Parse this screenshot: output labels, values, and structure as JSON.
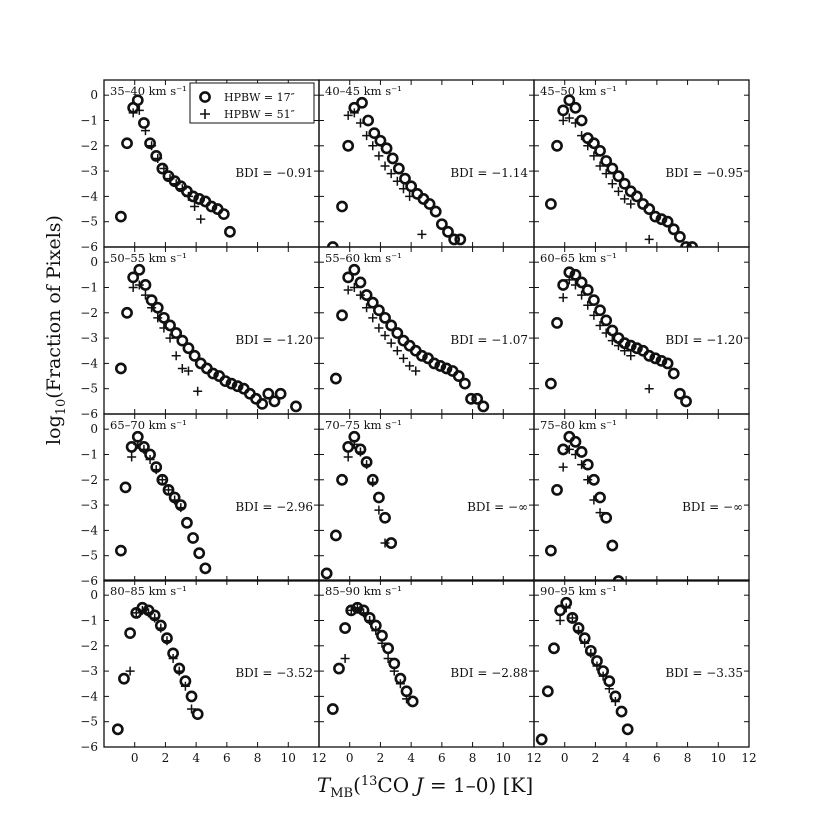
{
  "figure": {
    "ylabel": "log10(Fraction of Pixels)",
    "xlabel": "TMB(13CO J = 1-0) [K]",
    "legend": {
      "entries": [
        {
          "marker": "circle",
          "label": "HPBW = 17″"
        },
        {
          "marker": "plus",
          "label": "HPBW = 51″"
        }
      ]
    },
    "x_ticks": [
      "0",
      "2",
      "4",
      "6",
      "8",
      "10",
      "12"
    ],
    "y_ticks": [
      "0",
      "−1",
      "−2",
      "−3",
      "−4",
      "−5",
      "−6"
    ]
  },
  "chart_data": [
    {
      "type": "scatter",
      "title": "35–40 km s⁻¹",
      "bdi": "BDI = −0.91",
      "xlim": [
        -2,
        12
      ],
      "ylim": [
        -6,
        0.6
      ],
      "series": [
        {
          "marker": "circle",
          "x": [
            -0.9,
            -0.5,
            -0.1,
            0.2,
            0.6,
            1.0,
            1.4,
            1.8,
            2.2,
            2.6,
            3.0,
            3.4,
            3.8,
            4.2,
            4.6,
            5.0,
            5.4,
            5.8,
            6.2
          ],
          "y": [
            -4.8,
            -1.9,
            -0.5,
            -0.2,
            -1.1,
            -1.9,
            -2.4,
            -2.9,
            -3.2,
            -3.4,
            -3.6,
            -3.8,
            -4.0,
            -4.1,
            -4.2,
            -4.4,
            -4.5,
            -4.7,
            -5.4
          ]
        },
        {
          "marker": "plus",
          "x": [
            -0.1,
            0.3,
            0.7,
            1.1,
            1.5,
            1.9,
            2.3,
            2.7,
            3.1,
            3.5,
            3.9,
            4.3
          ],
          "y": [
            -0.7,
            -0.6,
            -1.4,
            -2.0,
            -2.5,
            -2.9,
            -3.3,
            -3.5,
            -3.7,
            -4.0,
            -4.4,
            -4.9
          ]
        }
      ]
    },
    {
      "type": "scatter",
      "title": "40–45 km s⁻¹",
      "bdi": "BDI = −1.14",
      "xlim": [
        -2,
        12
      ],
      "ylim": [
        -6,
        0.6
      ],
      "series": [
        {
          "marker": "circle",
          "x": [
            -1.1,
            -0.5,
            -0.1,
            0.3,
            0.8,
            1.2,
            1.6,
            2.0,
            2.4,
            2.8,
            3.2,
            3.6,
            4.0,
            4.4,
            4.8,
            5.2,
            5.6,
            6.0,
            6.4,
            6.8,
            7.2
          ],
          "y": [
            -6.0,
            -4.4,
            -2.0,
            -0.5,
            -0.3,
            -1.0,
            -1.5,
            -1.8,
            -2.1,
            -2.5,
            -2.9,
            -3.3,
            -3.6,
            -3.9,
            -4.1,
            -4.3,
            -4.6,
            -5.1,
            -5.4,
            -5.7,
            -5.7
          ]
        },
        {
          "marker": "plus",
          "x": [
            -0.1,
            0.3,
            0.7,
            1.1,
            1.5,
            1.9,
            2.3,
            2.7,
            3.1,
            3.5,
            3.9,
            4.7
          ],
          "y": [
            -0.8,
            -0.7,
            -1.1,
            -1.6,
            -2.0,
            -2.4,
            -2.8,
            -3.1,
            -3.4,
            -3.7,
            -4.0,
            -5.5
          ]
        }
      ]
    },
    {
      "type": "scatter",
      "title": "45–50 km s⁻¹",
      "bdi": "BDI = −0.95",
      "xlim": [
        -2,
        12
      ],
      "ylim": [
        -6,
        0.6
      ],
      "series": [
        {
          "marker": "circle",
          "x": [
            -0.9,
            -0.5,
            -0.1,
            0.3,
            0.7,
            1.1,
            1.5,
            1.9,
            2.3,
            2.7,
            3.1,
            3.5,
            3.9,
            4.3,
            4.7,
            5.1,
            5.5,
            5.9,
            6.3,
            6.7,
            7.1,
            7.5,
            7.9,
            8.3
          ],
          "y": [
            -4.3,
            -2.0,
            -0.6,
            -0.2,
            -0.5,
            -1.0,
            -1.7,
            -1.9,
            -2.2,
            -2.6,
            -2.9,
            -3.2,
            -3.5,
            -3.8,
            -4.0,
            -4.3,
            -4.5,
            -4.8,
            -4.9,
            -5.0,
            -5.3,
            -5.6,
            -6.0,
            -6.0
          ]
        },
        {
          "marker": "plus",
          "x": [
            -0.1,
            0.3,
            0.7,
            1.1,
            1.5,
            1.9,
            2.3,
            2.7,
            3.1,
            3.5,
            3.9,
            4.3,
            5.5
          ],
          "y": [
            -1.0,
            -0.9,
            -1.1,
            -1.6,
            -2.0,
            -2.4,
            -2.8,
            -3.1,
            -3.5,
            -3.8,
            -4.1,
            -4.3,
            -5.7
          ]
        }
      ]
    },
    {
      "type": "scatter",
      "title": "50–55 km s⁻¹",
      "bdi": "BDI = −1.20",
      "xlim": [
        -2,
        12
      ],
      "ylim": [
        -6,
        0.6
      ],
      "series": [
        {
          "marker": "circle",
          "x": [
            -0.9,
            -0.5,
            -0.1,
            0.3,
            0.7,
            1.1,
            1.5,
            1.9,
            2.3,
            2.7,
            3.1,
            3.5,
            3.9,
            4.3,
            4.7,
            5.1,
            5.5,
            5.9,
            6.3,
            6.7,
            7.1,
            7.5,
            7.9,
            8.3,
            8.7,
            9.1,
            9.5,
            10.5
          ],
          "y": [
            -4.2,
            -2.0,
            -0.6,
            -0.3,
            -0.9,
            -1.5,
            -1.8,
            -2.2,
            -2.5,
            -2.8,
            -3.1,
            -3.4,
            -3.7,
            -4.0,
            -4.2,
            -4.4,
            -4.5,
            -4.7,
            -4.8,
            -4.9,
            -5.0,
            -5.2,
            -5.4,
            -5.6,
            -5.2,
            -5.5,
            -5.2,
            -5.7
          ]
        },
        {
          "marker": "plus",
          "x": [
            -0.1,
            0.3,
            0.7,
            1.1,
            1.5,
            1.9,
            2.3,
            2.7,
            3.1,
            3.5,
            4.1
          ],
          "y": [
            -1.0,
            -0.9,
            -1.3,
            -1.8,
            -2.2,
            -2.6,
            -3.0,
            -3.7,
            -4.2,
            -4.3,
            -5.1
          ]
        }
      ]
    },
    {
      "type": "scatter",
      "title": "55–60 km s⁻¹",
      "bdi": "BDI = −1.07",
      "xlim": [
        -2,
        12
      ],
      "ylim": [
        -6,
        0.6
      ],
      "series": [
        {
          "marker": "circle",
          "x": [
            -0.9,
            -0.5,
            -0.1,
            0.3,
            0.7,
            1.1,
            1.5,
            1.9,
            2.3,
            2.7,
            3.1,
            3.5,
            3.9,
            4.3,
            4.7,
            5.1,
            5.5,
            5.9,
            6.3,
            6.7,
            7.1,
            7.5,
            7.9,
            8.3,
            8.7
          ],
          "y": [
            -4.6,
            -2.1,
            -0.6,
            -0.3,
            -0.8,
            -1.3,
            -1.6,
            -1.9,
            -2.2,
            -2.5,
            -2.8,
            -3.1,
            -3.3,
            -3.5,
            -3.7,
            -3.8,
            -4.0,
            -4.1,
            -4.2,
            -4.3,
            -4.5,
            -4.8,
            -5.4,
            -5.4,
            -5.7
          ]
        },
        {
          "marker": "plus",
          "x": [
            -0.1,
            0.3,
            0.7,
            1.1,
            1.5,
            1.9,
            2.3,
            2.7,
            3.1,
            3.5,
            3.9,
            4.3
          ],
          "y": [
            -1.1,
            -1.0,
            -1.3,
            -1.8,
            -2.2,
            -2.6,
            -2.9,
            -3.2,
            -3.5,
            -3.8,
            -4.1,
            -4.3
          ]
        }
      ]
    },
    {
      "type": "scatter",
      "title": "60–65 km s⁻¹",
      "bdi": "BDI = −1.20",
      "xlim": [
        -2,
        12
      ],
      "ylim": [
        -6,
        0.6
      ],
      "series": [
        {
          "marker": "circle",
          "x": [
            -0.9,
            -0.5,
            -0.1,
            0.3,
            0.7,
            1.1,
            1.5,
            1.9,
            2.3,
            2.7,
            3.1,
            3.5,
            3.9,
            4.3,
            4.7,
            5.1,
            5.5,
            5.9,
            6.3,
            6.7,
            7.1,
            7.5,
            7.9
          ],
          "y": [
            -4.8,
            -2.4,
            -0.9,
            -0.4,
            -0.5,
            -0.8,
            -1.1,
            -1.5,
            -1.9,
            -2.3,
            -2.7,
            -3.0,
            -3.2,
            -3.3,
            -3.4,
            -3.5,
            -3.7,
            -3.8,
            -3.9,
            -4.0,
            -4.4,
            -5.2,
            -5.5
          ]
        },
        {
          "marker": "plus",
          "x": [
            -0.1,
            0.3,
            0.7,
            1.1,
            1.5,
            1.9,
            2.3,
            2.7,
            3.1,
            3.5,
            3.9,
            4.3,
            5.5
          ],
          "y": [
            -1.4,
            -0.7,
            -0.9,
            -1.3,
            -1.7,
            -2.1,
            -2.5,
            -2.8,
            -3.1,
            -3.3,
            -3.5,
            -3.7,
            -5.0
          ]
        }
      ]
    },
    {
      "type": "scatter",
      "title": "65–70 km s⁻¹",
      "bdi": "BDI = −2.96",
      "xlim": [
        -2,
        12
      ],
      "ylim": [
        -6,
        0.6
      ],
      "series": [
        {
          "marker": "circle",
          "x": [
            -0.9,
            -0.6,
            -0.2,
            0.2,
            0.6,
            1.0,
            1.4,
            1.8,
            2.2,
            2.6,
            3.0,
            3.4,
            3.8,
            4.2,
            4.6
          ],
          "y": [
            -4.8,
            -2.3,
            -0.7,
            -0.3,
            -0.7,
            -1.0,
            -1.5,
            -2.0,
            -2.4,
            -2.7,
            -3.0,
            -3.7,
            -4.3,
            -4.9,
            -5.5
          ]
        },
        {
          "marker": "plus",
          "x": [
            -0.2,
            0.2,
            0.6,
            1.0,
            1.4,
            1.8,
            2.2,
            2.6,
            3.0
          ],
          "y": [
            -1.1,
            -0.6,
            -0.8,
            -1.2,
            -1.6,
            -2.0,
            -2.4,
            -2.8,
            -3.1
          ]
        }
      ]
    },
    {
      "type": "scatter",
      "title": "70–75 km s⁻¹",
      "bdi": "BDI = −∞",
      "xlim": [
        -2,
        12
      ],
      "ylim": [
        -6,
        0.6
      ],
      "series": [
        {
          "marker": "circle",
          "x": [
            -1.5,
            -0.9,
            -0.5,
            -0.1,
            0.3,
            0.7,
            1.1,
            1.5,
            1.9,
            2.3,
            2.7
          ],
          "y": [
            -5.7,
            -4.2,
            -2.0,
            -0.7,
            -0.3,
            -0.8,
            -1.3,
            -2.0,
            -2.7,
            -3.5,
            -4.5
          ]
        },
        {
          "marker": "plus",
          "x": [
            -0.1,
            0.3,
            0.7,
            1.1,
            1.5,
            1.9,
            2.3
          ],
          "y": [
            -1.1,
            -0.6,
            -0.9,
            -1.4,
            -2.1,
            -3.2,
            -4.5
          ]
        }
      ]
    },
    {
      "type": "scatter",
      "title": "75–80 km s⁻¹",
      "bdi": "BDI = −∞",
      "xlim": [
        -2,
        12
      ],
      "ylim": [
        -6,
        0.6
      ],
      "series": [
        {
          "marker": "circle",
          "x": [
            -0.9,
            -0.5,
            -0.1,
            0.3,
            0.7,
            1.1,
            1.5,
            1.9,
            2.3,
            2.7,
            3.1,
            3.5
          ],
          "y": [
            -4.8,
            -2.4,
            -0.8,
            -0.3,
            -0.5,
            -0.9,
            -1.4,
            -2.0,
            -2.7,
            -3.5,
            -4.6,
            -6.0
          ]
        },
        {
          "marker": "plus",
          "x": [
            -0.1,
            0.3,
            0.7,
            1.1,
            1.5,
            1.9,
            2.3
          ],
          "y": [
            -1.5,
            -0.8,
            -1.0,
            -1.4,
            -2.0,
            -2.8,
            -3.3
          ]
        }
      ]
    },
    {
      "type": "scatter",
      "title": "80–85 km s⁻¹",
      "bdi": "BDI = −3.52",
      "xlim": [
        -2,
        12
      ],
      "ylim": [
        -6,
        0.6
      ],
      "series": [
        {
          "marker": "circle",
          "x": [
            -1.1,
            -0.7,
            -0.3,
            0.1,
            0.5,
            0.9,
            1.3,
            1.7,
            2.1,
            2.5,
            2.9,
            3.3,
            3.7,
            4.1
          ],
          "y": [
            -5.3,
            -3.3,
            -1.5,
            -0.7,
            -0.5,
            -0.6,
            -0.8,
            -1.2,
            -1.7,
            -2.3,
            -2.9,
            -3.4,
            -4.0,
            -4.7
          ]
        },
        {
          "marker": "plus",
          "x": [
            -0.3,
            0.1,
            0.5,
            0.9,
            1.3,
            1.7,
            2.1,
            2.5,
            2.9,
            3.3,
            3.7
          ],
          "y": [
            -3.0,
            -0.7,
            -0.6,
            -0.7,
            -0.9,
            -1.3,
            -1.8,
            -2.5,
            -3.0,
            -3.6,
            -4.5
          ]
        }
      ]
    },
    {
      "type": "scatter",
      "title": "85–90 km s⁻¹",
      "bdi": "BDI = −2.88",
      "xlim": [
        -2,
        12
      ],
      "ylim": [
        -6,
        0.6
      ],
      "series": [
        {
          "marker": "circle",
          "x": [
            -1.1,
            -0.7,
            -0.3,
            0.1,
            0.5,
            0.9,
            1.3,
            1.7,
            2.1,
            2.5,
            2.9,
            3.3,
            3.7,
            4.1
          ],
          "y": [
            -4.5,
            -2.9,
            -1.3,
            -0.6,
            -0.5,
            -0.6,
            -0.9,
            -1.2,
            -1.6,
            -2.1,
            -2.7,
            -3.3,
            -3.8,
            -4.2
          ]
        },
        {
          "marker": "plus",
          "x": [
            -0.3,
            0.1,
            0.5,
            0.9,
            1.3,
            1.7,
            2.1,
            2.5,
            2.9,
            3.3,
            3.7
          ],
          "y": [
            -2.5,
            -0.6,
            -0.5,
            -0.7,
            -1.0,
            -1.4,
            -1.9,
            -2.5,
            -3.0,
            -3.5,
            -4.1
          ]
        }
      ]
    },
    {
      "type": "scatter",
      "title": "90–95 km s⁻¹",
      "bdi": "BDI = −3.35",
      "xlim": [
        -2,
        12
      ],
      "ylim": [
        -6,
        0.6
      ],
      "series": [
        {
          "marker": "circle",
          "x": [
            -1.5,
            -1.1,
            -0.7,
            -0.3,
            0.1,
            0.5,
            0.9,
            1.3,
            1.7,
            2.1,
            2.5,
            2.9,
            3.3,
            3.7,
            4.1
          ],
          "y": [
            -5.7,
            -3.8,
            -2.1,
            -0.6,
            -0.3,
            -0.9,
            -1.3,
            -1.7,
            -2.2,
            -2.6,
            -3.0,
            -3.4,
            -4.0,
            -4.6,
            -5.3
          ]
        },
        {
          "marker": "plus",
          "x": [
            -0.3,
            0.1,
            0.5,
            0.9,
            1.3,
            1.7,
            2.1,
            2.5,
            2.9,
            3.3
          ],
          "y": [
            -1.0,
            -0.5,
            -0.9,
            -1.4,
            -1.9,
            -2.3,
            -2.8,
            -3.2,
            -3.7,
            -4.2
          ]
        }
      ]
    }
  ]
}
